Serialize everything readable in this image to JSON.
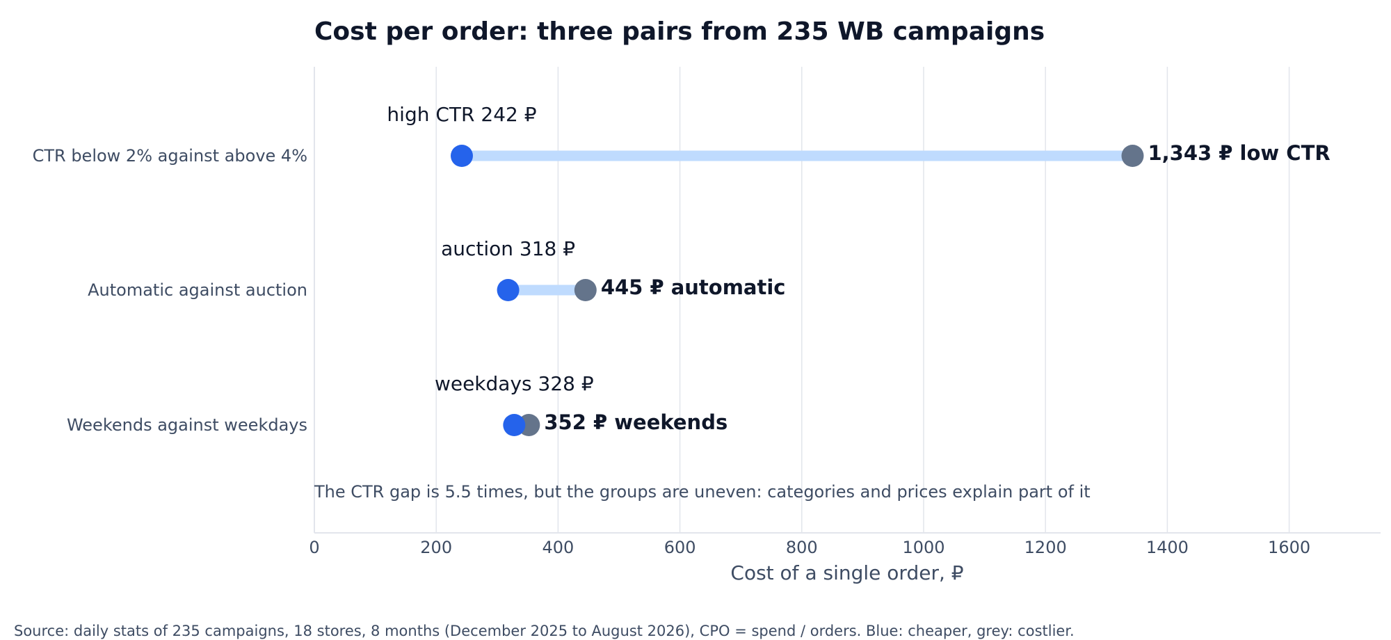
{
  "chart_data": {
    "type": "dumbbell",
    "title": "Cost per order: three pairs from 235 WB campaigns",
    "xlabel": "Cost of a single order, ₽",
    "xlim": [
      0,
      1750
    ],
    "xticks": [
      0,
      200,
      400,
      600,
      800,
      1000,
      1200,
      1400,
      1600
    ],
    "grid": true,
    "colors": {
      "cheaper": "#2563eb",
      "costlier": "#64748b",
      "connector": "#bfdbfe"
    },
    "pairs": [
      {
        "category": "CTR below 2% against above 4%",
        "low": 242,
        "high": 1343,
        "low_label": "high CTR 242 ₽",
        "high_label": "1,343 ₽ low CTR"
      },
      {
        "category": "Automatic against auction",
        "low": 318,
        "high": 445,
        "low_label": "auction 318 ₽",
        "high_label": "445 ₽ automatic"
      },
      {
        "category": "Weekends against weekdays",
        "low": 328,
        "high": 352,
        "low_label": "weekdays 328 ₽",
        "high_label": "352 ₽ weekends"
      }
    ],
    "annotation": "The CTR gap is 5.5 times, but the groups are uneven: categories and prices explain part of it",
    "source": "Source: daily stats of 235 campaigns, 18 stores, 8 months (December 2025 to August 2026), CPO = spend / orders. Blue: cheaper, grey: costlier."
  }
}
